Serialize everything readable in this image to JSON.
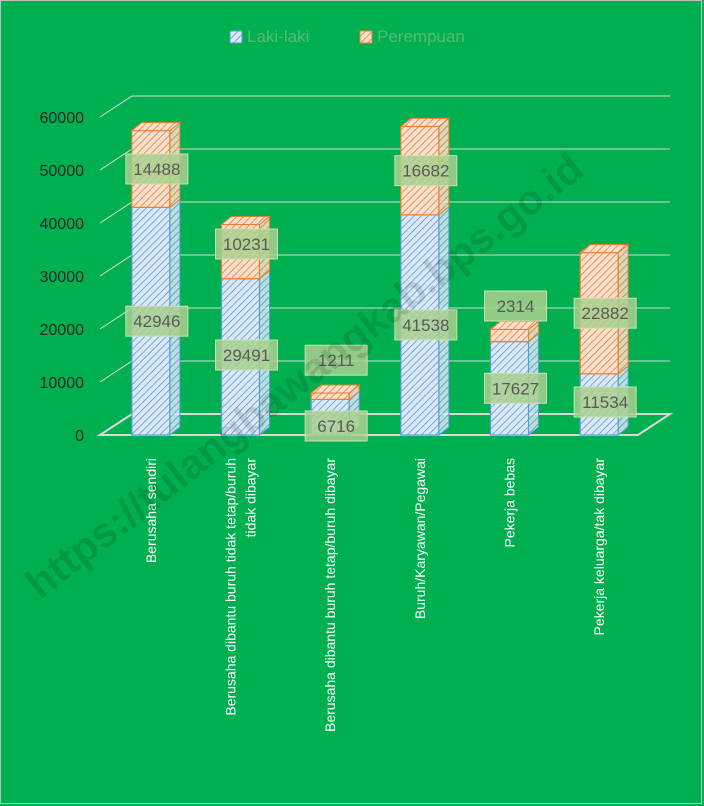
{
  "chart_data": {
    "type": "bar",
    "stacked": true,
    "view": "3d-cylinder-like stacked columns",
    "categories": [
      "Berusaha sendiri",
      "Berusaha dibantu buruh tidak tetap/buruh tidak dibayar",
      "Berusaha dibantu buruh tetap/buruh dibayar",
      "Buruh/Karyawan/Pegawai",
      "Pekerja bebas",
      "Pekerja keluarga/tak dibayar"
    ],
    "category_lines": [
      [
        "Berusaha sendiri"
      ],
      [
        "Berusaha dibantu buruh tidak tetap/buruh",
        "tidak dibayar"
      ],
      [
        "Berusaha dibantu buruh tetap/buruh dibayar"
      ],
      [
        "Buruh/Karyawan/Pegawai"
      ],
      [
        "Pekerja bebas"
      ],
      [
        "Pekerja keluarga/tak dibayar"
      ]
    ],
    "series": [
      {
        "name": "Laki-laki",
        "values": [
          42946,
          29491,
          6716,
          41538,
          17627,
          11534
        ],
        "color": "#5b9bd5",
        "fill": "#dbe8f7"
      },
      {
        "name": "Perempuan",
        "values": [
          14488,
          10231,
          1211,
          16682,
          2314,
          22882
        ],
        "color": "#ed7d31",
        "fill": "#fbe0cf"
      }
    ],
    "y_ticks": [
      "0",
      "10000",
      "20000",
      "30000",
      "40000",
      "50000",
      "60000"
    ],
    "ylim": [
      0,
      60000
    ],
    "grid": true,
    "legend_position": "top",
    "label_box_color": "#a9d08e",
    "background": "#00b050",
    "watermark": "https://tulangbawangkab.bps.go.id"
  }
}
